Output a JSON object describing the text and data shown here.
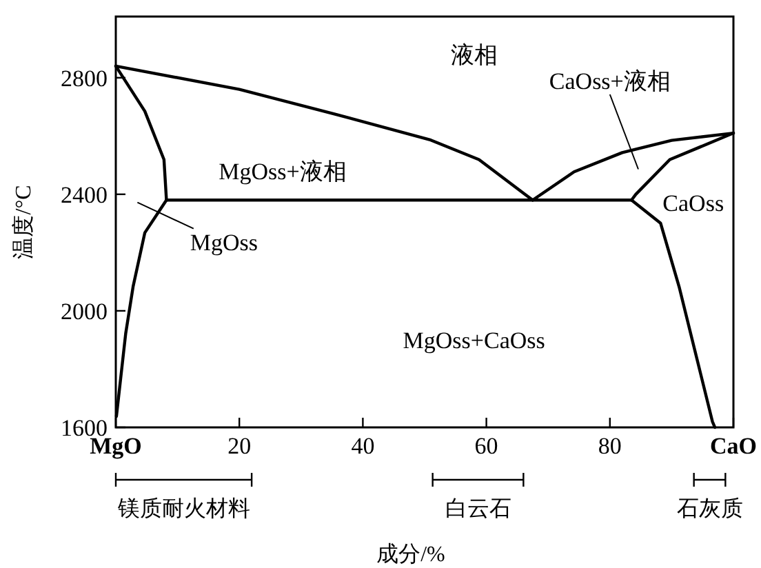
{
  "chart_data": {
    "type": "line",
    "xlabel": "成分/%",
    "ylabel": "温度/°C",
    "xlim": [
      0,
      100
    ],
    "ylim": [
      1600,
      3010
    ],
    "xticks": [
      {
        "value": 0,
        "label": "MgO"
      },
      20,
      40,
      60,
      80,
      {
        "value": 100,
        "label": "CaO"
      }
    ],
    "yticks": [
      1600,
      2000,
      2400,
      2800
    ],
    "grid": false,
    "line_style": "solid",
    "series": [
      {
        "color": "#000000",
        "x": [
          0,
          20,
          35.5,
          51,
          58.8,
          67.5
        ],
        "values": [
          2840,
          2760,
          2675,
          2586,
          2519,
          2380
        ]
      },
      {
        "color": "#000000",
        "x": [
          67.5,
          74.2,
          82,
          90,
          100
        ],
        "values": [
          2380,
          2477,
          2543,
          2585,
          2610
        ]
      },
      {
        "color": "#000000",
        "x": [
          8.2,
          67.5,
          83.5
        ],
        "values": [
          2380,
          2380,
          2380
        ]
      },
      {
        "color": "#000000",
        "x": [
          0,
          4.7,
          7.8,
          8.2
        ],
        "values": [
          2840,
          2685,
          2519,
          2380
        ]
      },
      {
        "color": "#000000",
        "x": [
          8.2,
          4.7,
          2.8,
          1.6,
          0.1
        ],
        "values": [
          2380,
          2268,
          2083,
          1922,
          1638
        ]
      },
      {
        "color": "#000000",
        "x": [
          100,
          89.7,
          84.2,
          83.5
        ],
        "values": [
          2610,
          2519,
          2400,
          2380
        ]
      },
      {
        "color": "#000000",
        "x": [
          83.5,
          88.2,
          91.2,
          96.6,
          97
        ],
        "values": [
          2380,
          2301,
          2083,
          1620,
          1600
        ]
      }
    ],
    "annotations": [
      "液相",
      "MgOss+液相",
      "MgOss+CaOss",
      "CaOss",
      "MgOss",
      "CaOss+液相",
      "镁质耐火材料",
      "白云石",
      "石灰质"
    ]
  }
}
